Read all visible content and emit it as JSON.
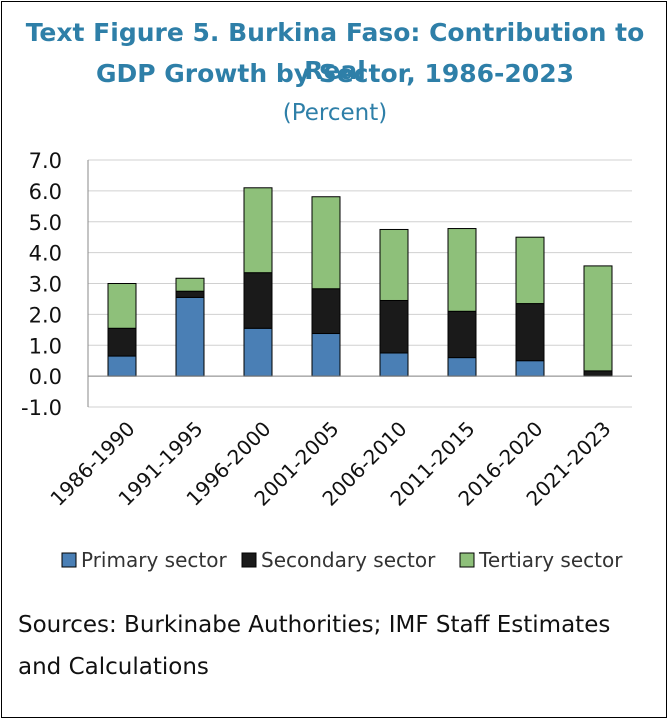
{
  "header": {
    "title_line1": "Text Figure 5. Burkina Faso: Contribution to Real",
    "title_line2": "GDP Growth by Sector, 1986-2023",
    "subtitle": "(Percent)"
  },
  "chart_data": {
    "type": "bar",
    "stacked": true,
    "categories": [
      "1986-1990",
      "1991-1995",
      "1996-2000",
      "2001-2005",
      "2006-2010",
      "2011-2015",
      "2016-2020",
      "2021-2023"
    ],
    "series": [
      {
        "name": "Primary sector",
        "color": "#4a7fb5",
        "values": [
          0.65,
          2.55,
          1.55,
          1.38,
          0.75,
          0.6,
          0.5,
          0.02
        ]
      },
      {
        "name": "Secondary sector",
        "color": "#1a1a1a",
        "values": [
          0.9,
          0.2,
          1.8,
          1.45,
          1.7,
          1.5,
          1.85,
          0.15
        ]
      },
      {
        "name": "Tertiary sector",
        "color": "#8ec07a",
        "values": [
          1.45,
          0.42,
          2.75,
          2.98,
          2.3,
          2.68,
          2.15,
          3.4
        ]
      }
    ],
    "ylim": [
      -1.0,
      7.0
    ],
    "yticks": [
      "-1.0",
      "0.0",
      "1.0",
      "2.0",
      "3.0",
      "4.0",
      "5.0",
      "6.0",
      "7.0"
    ],
    "ytick_values": [
      -1,
      0,
      1,
      2,
      3,
      4,
      5,
      6,
      7
    ],
    "grid": true,
    "legend_position": "bottom"
  },
  "footer": {
    "source": "Sources: Burkinabe Authorities; IMF Staff Estimates and Calculations"
  }
}
